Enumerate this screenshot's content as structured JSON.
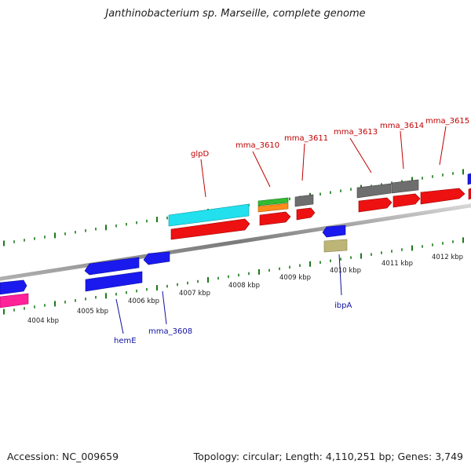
{
  "title": "Janthinobacterium sp. Marseille, complete genome",
  "footer": {
    "accession": "Accession: NC_009659",
    "summary": "Topology: circular; Length: 4,110,251 bp; Genes: 3,749"
  },
  "axis_ticks": [
    "4004 kbp",
    "4005 kbp",
    "4006 kbp",
    "4007 kbp",
    "4008 kbp",
    "4009 kbp",
    "4010 kbp",
    "4011 kbp",
    "4012 kbp"
  ],
  "upper_labels": [
    "glpD",
    "mma_3610",
    "mma_3611",
    "mma_3613",
    "mma_3614",
    "mma_3615"
  ],
  "lower_labels": [
    "hemE",
    "mma_3608",
    "ibpA"
  ],
  "colors": {
    "backbone": "#8c8c8c",
    "tick": "#1a7a1a",
    "red": "#ee1111",
    "blue": "#1a1aee",
    "cyan": "#22e0ee",
    "gray": "#6e6e6e",
    "green": "#33bb33",
    "orange": "#ff8c1a",
    "pink": "#ff2299",
    "khaki": "#bdb576",
    "label_red": "#c00000",
    "label_blue": "#1010a0"
  }
}
